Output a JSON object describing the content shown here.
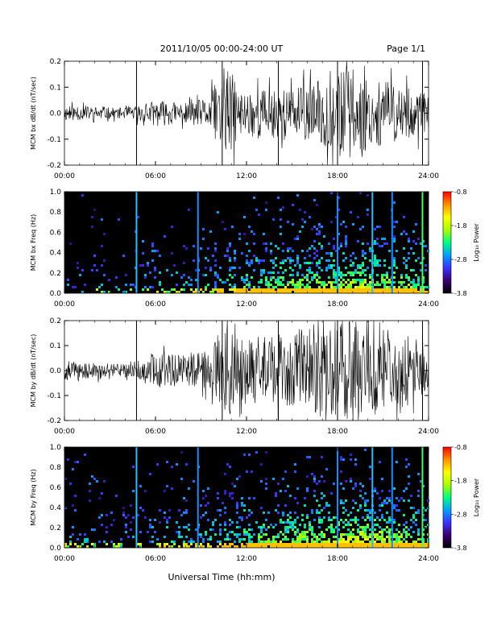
{
  "header": {
    "title": "2011/10/05  00:00-24:00 UT",
    "page": "Page 1/1"
  },
  "footer": {
    "xlabel": "Universal Time (hh:mm)"
  },
  "colorbar": {
    "label": "Log₁₀ Power",
    "ticks": [
      "-0.8",
      "-1.8",
      "-2.8",
      "-3.8"
    ],
    "range": [
      -3.8,
      -0.8
    ],
    "colormap": [
      "#000000",
      "#3a0070",
      "#3b32ff",
      "#00a0ff",
      "#00ff80",
      "#a8ff00",
      "#ffff00",
      "#ff9000",
      "#ff0000"
    ]
  },
  "chart_data": [
    {
      "type": "line",
      "ylabel": "MCM bx dB/dt (nT/sec)",
      "xlim": [
        0,
        24
      ],
      "ylim": [
        -0.2,
        0.2
      ],
      "xticks": [
        "00:00",
        "06:00",
        "12:00",
        "18:00",
        "24:00"
      ],
      "yticks": [
        "-0.2",
        "-0.1",
        "0.0",
        "0.1",
        "0.2"
      ],
      "spikes_hours": [
        4.75,
        10.4,
        14.1,
        18.0,
        23.6
      ],
      "series": [
        {
          "x_hours": [
            0,
            2,
            4,
            4.8,
            6,
            8,
            9.5,
            10.3,
            10.9,
            11.5,
            12.5,
            14,
            15.5,
            16.5,
            17.5,
            18.5,
            19.5,
            20.5,
            21.5,
            22.5,
            23.5,
            24
          ],
          "envelope": [
            0.03,
            0.025,
            0.02,
            0.03,
            0.05,
            0.04,
            0.06,
            0.14,
            0.18,
            0.08,
            0.1,
            0.09,
            0.1,
            0.12,
            0.15,
            0.18,
            0.16,
            0.13,
            0.12,
            0.1,
            0.09,
            0.06
          ]
        }
      ]
    },
    {
      "type": "heatmap",
      "ylabel": "MCM bx Freq (Hz)",
      "xlim": [
        0,
        24
      ],
      "ylim": [
        0,
        1
      ],
      "xticks": [
        "00:00",
        "06:00",
        "12:00",
        "18:00",
        "24:00"
      ],
      "yticks": [
        "0.0",
        "0.2",
        "0.4",
        "0.6",
        "0.8",
        "1.0"
      ],
      "zlim": [
        -3.8,
        -0.8
      ],
      "vertical_streaks_hours": [
        4.75,
        8.8,
        18.0,
        20.3,
        21.6,
        23.6
      ],
      "activity_profile": {
        "x_hours": [
          0,
          2,
          4,
          6,
          8,
          10,
          12,
          14,
          16,
          18,
          20,
          22,
          24
        ],
        "level": [
          0.15,
          0.15,
          0.1,
          0.2,
          0.2,
          0.3,
          0.45,
          0.55,
          0.6,
          0.7,
          0.75,
          0.6,
          0.5
        ]
      }
    },
    {
      "type": "line",
      "ylabel": "MCM by dB/dt (nT/sec)",
      "xlim": [
        0,
        24
      ],
      "ylim": [
        -0.2,
        0.2
      ],
      "xticks": [
        "00:00",
        "06:00",
        "12:00",
        "18:00",
        "24:00"
      ],
      "yticks": [
        "-0.2",
        "-0.1",
        "0.0",
        "0.1",
        "0.2"
      ],
      "spikes_hours": [
        4.75,
        10.4,
        14.1,
        18.0,
        23.6
      ],
      "series": [
        {
          "x_hours": [
            0,
            2,
            4,
            4.8,
            6,
            8,
            9.5,
            10.3,
            10.9,
            11.5,
            12.5,
            14,
            15.5,
            16.5,
            17.5,
            18.5,
            19.5,
            20.5,
            21.5,
            22.5,
            23.5,
            24
          ],
          "envelope": [
            0.04,
            0.03,
            0.025,
            0.04,
            0.07,
            0.06,
            0.08,
            0.16,
            0.19,
            0.12,
            0.14,
            0.15,
            0.17,
            0.18,
            0.19,
            0.2,
            0.2,
            0.18,
            0.16,
            0.13,
            0.1,
            0.08
          ]
        }
      ]
    },
    {
      "type": "heatmap",
      "ylabel": "MCM by Freq (Hz)",
      "xlim": [
        0,
        24
      ],
      "ylim": [
        0,
        1
      ],
      "xticks": [
        "00:00",
        "06:00",
        "12:00",
        "18:00",
        "24:00"
      ],
      "yticks": [
        "0.0",
        "0.2",
        "0.4",
        "0.6",
        "0.8",
        "1.0"
      ],
      "zlim": [
        -3.8,
        -0.8
      ],
      "vertical_streaks_hours": [
        4.75,
        8.8,
        18.0,
        20.3,
        21.6,
        23.6
      ],
      "activity_profile": {
        "x_hours": [
          0,
          2,
          4,
          6,
          8,
          10,
          12,
          14,
          16,
          18,
          20,
          22,
          24
        ],
        "level": [
          0.2,
          0.2,
          0.15,
          0.25,
          0.25,
          0.35,
          0.5,
          0.6,
          0.65,
          0.75,
          0.8,
          0.65,
          0.55
        ]
      }
    }
  ]
}
